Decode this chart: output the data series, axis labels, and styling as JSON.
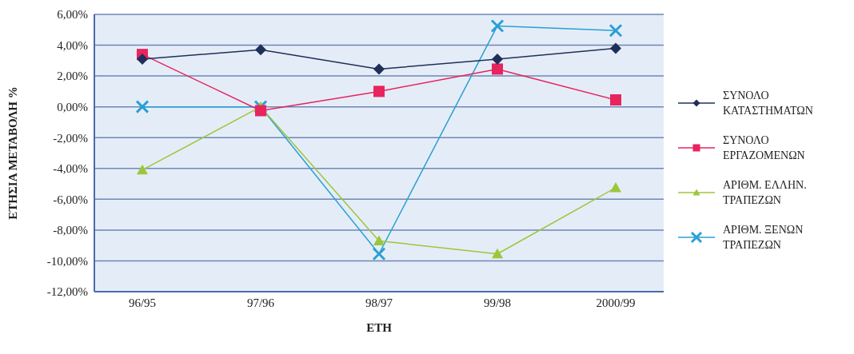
{
  "chart_data": {
    "type": "line",
    "xlabel": "ΕΤΗ",
    "ylabel": "ΕΤΗΣΙΑ ΜΕΤΑΒΟΛΗ %",
    "categories": [
      "96/95",
      "97/96",
      "98/97",
      "99/98",
      "2000/99"
    ],
    "ylim": [
      -12,
      6
    ],
    "yticks": [
      {
        "value": -12,
        "label": "-12,00%"
      },
      {
        "value": -10,
        "label": "-10,00%"
      },
      {
        "value": -8,
        "label": "-8,00%"
      },
      {
        "value": -6,
        "label": "-6,00%"
      },
      {
        "value": -4,
        "label": "-4,00%"
      },
      {
        "value": -2,
        "label": "-2,00%"
      },
      {
        "value": 0,
        "label": "0,00%"
      },
      {
        "value": 2,
        "label": "2,00%"
      },
      {
        "value": 4,
        "label": "4,00%"
      },
      {
        "value": 6,
        "label": "6,00%"
      }
    ],
    "grid": "y",
    "legend": "right",
    "series": [
      {
        "name": "ΣΥΝΟΛΟ ΚΑΤΑΣΤΗΜΑΤΩΝ",
        "color": "#1f2f5a",
        "marker": "diamond",
        "values": [
          3.1,
          3.7,
          2.45,
          3.1,
          3.8
        ]
      },
      {
        "name": "ΣΥΝΟΛΟ ΕΡΓΑΖΟΜΕΝΩΝ",
        "color": "#e8245e",
        "marker": "square",
        "values": [
          3.4,
          -0.25,
          1.0,
          2.45,
          0.45
        ]
      },
      {
        "name": "ΑΡΙΘΜ. ΕΛΛΗΝ. ΤΡΑΠΕΖΩΝ",
        "color": "#9cc63b",
        "marker": "triangle",
        "values": [
          -4.1,
          0,
          -8.7,
          -9.55,
          -5.25
        ]
      },
      {
        "name": "ΑΡΙΘΜ. ΞΕΝΩΝ ΤΡΑΠΕΖΩΝ",
        "color": "#2a9fd6",
        "marker": "cross",
        "values": [
          0,
          0,
          -9.55,
          5.25,
          4.95
        ]
      }
    ]
  }
}
